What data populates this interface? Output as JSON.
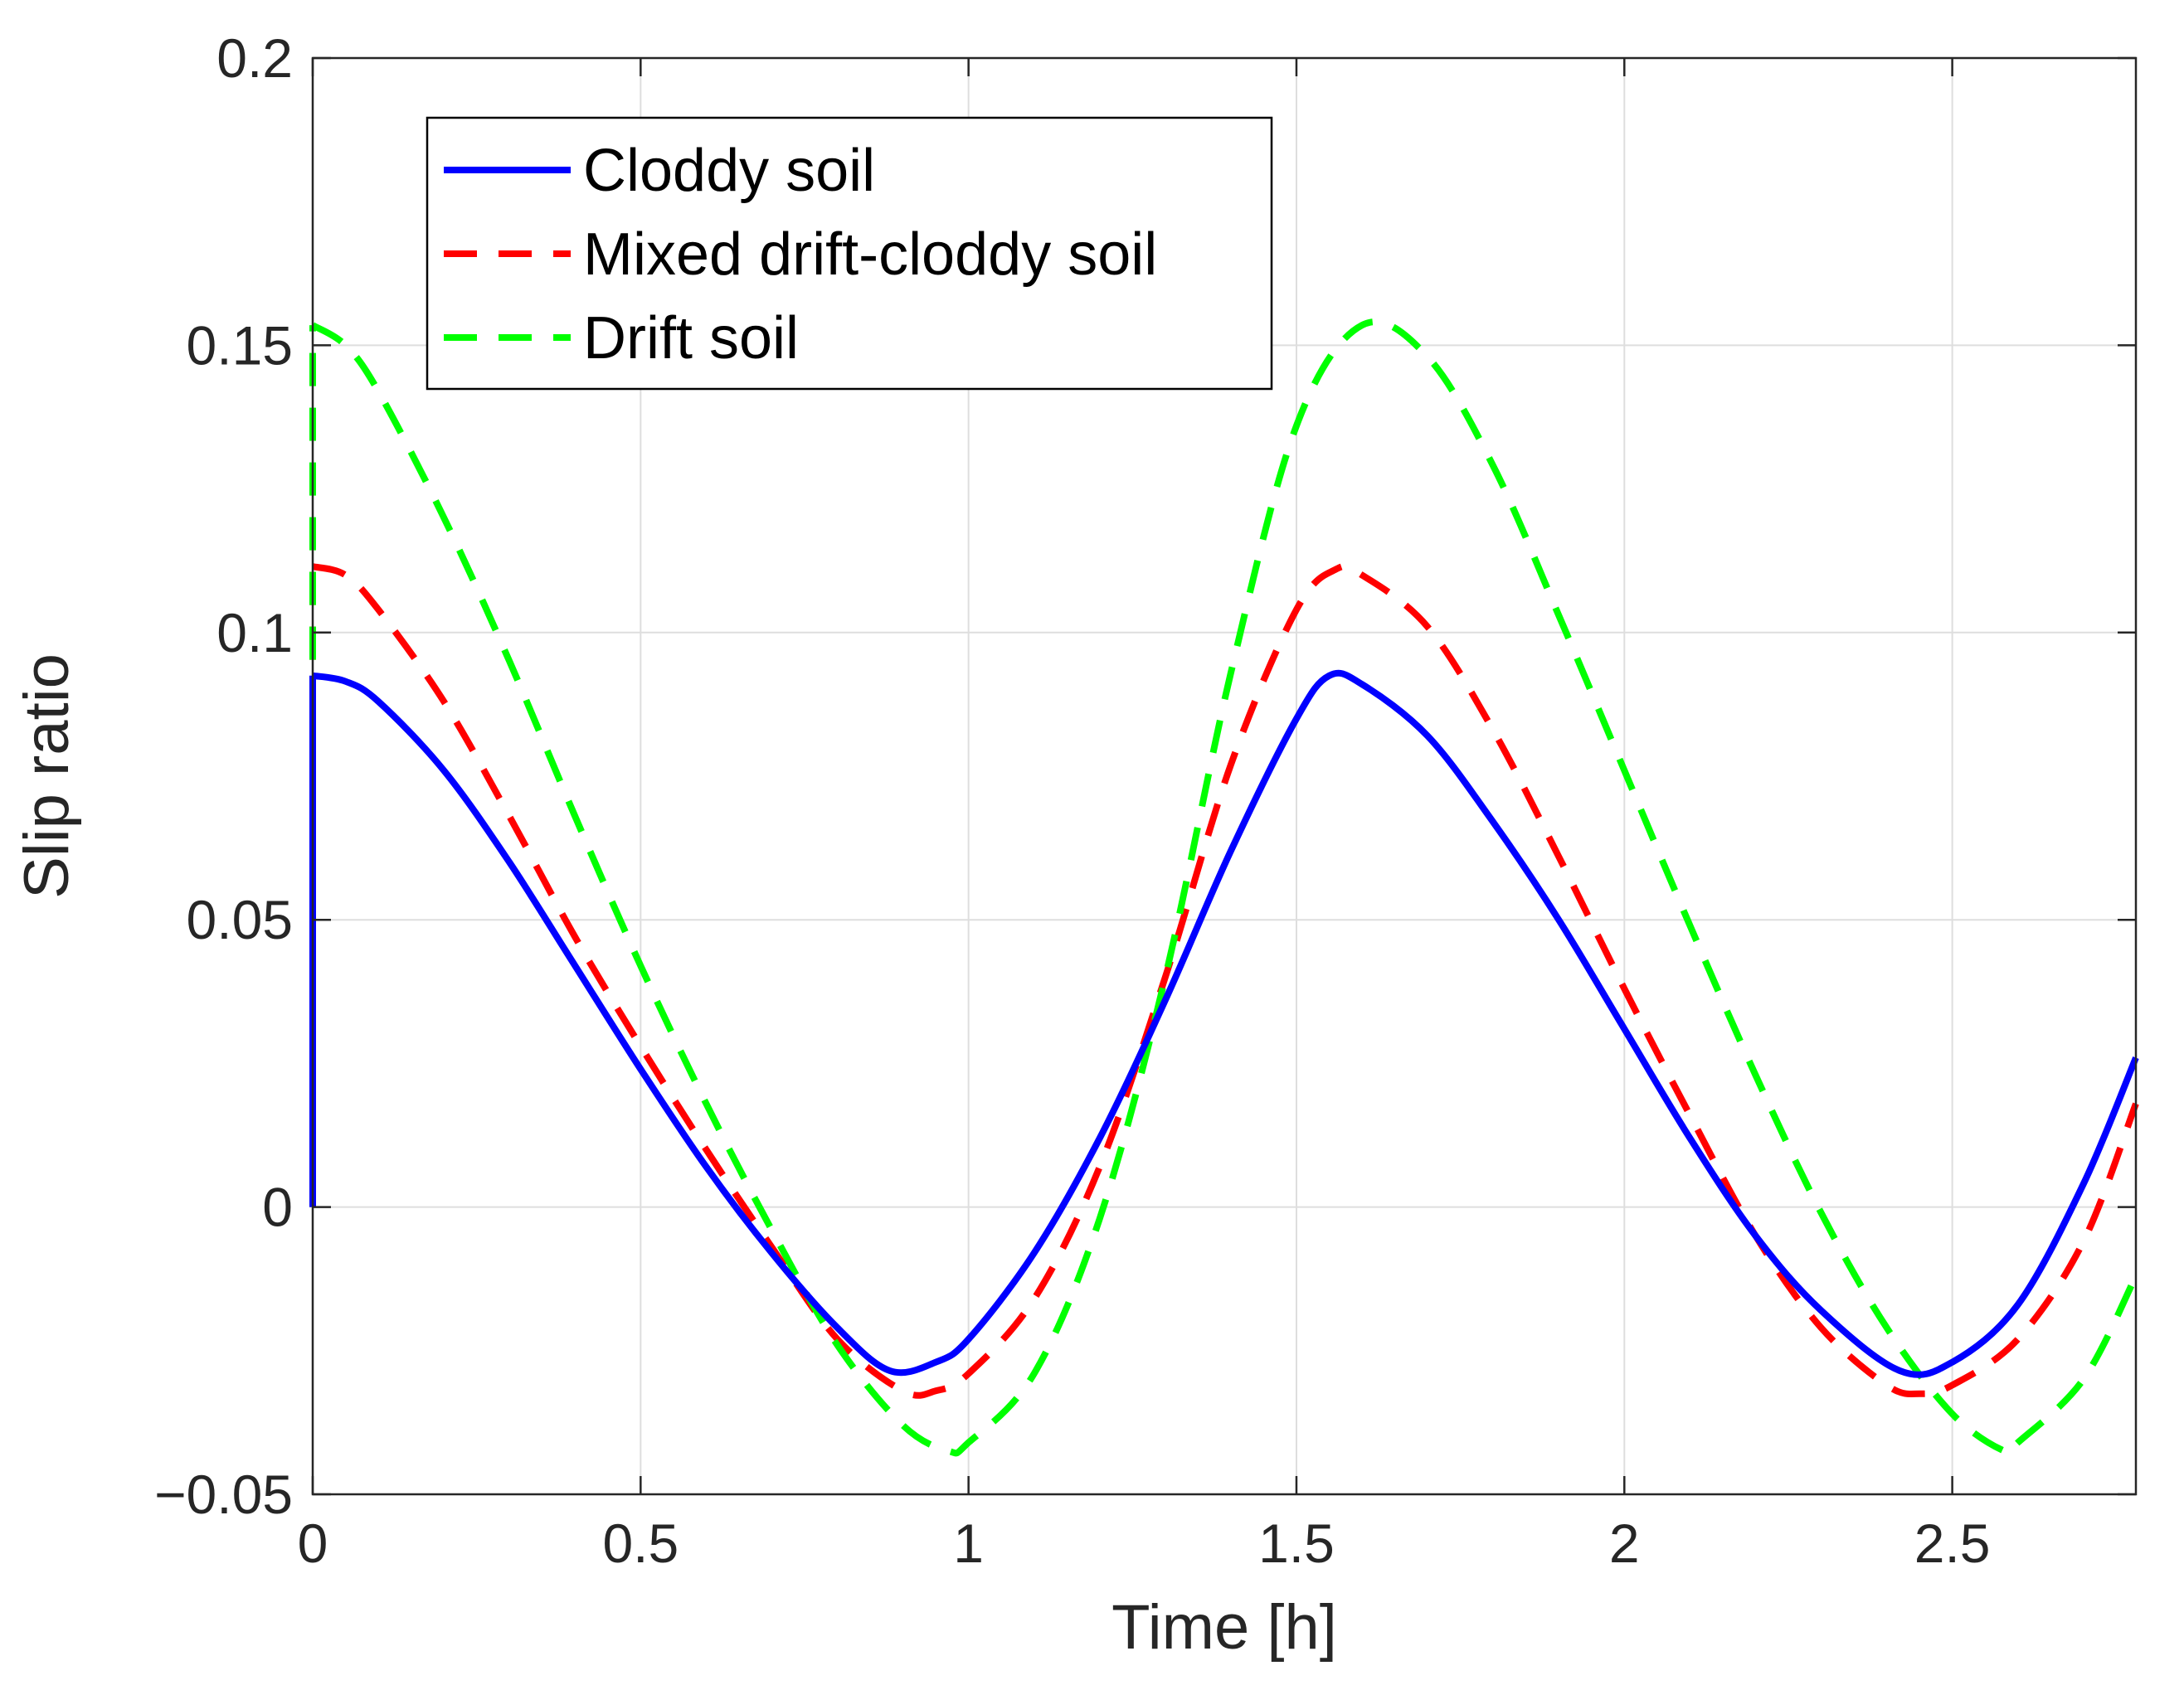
{
  "chart_data": {
    "type": "line",
    "title": "",
    "xlabel": "Time [h]",
    "ylabel": "Slip ratio",
    "xlim": [
      0,
      2.78
    ],
    "ylim": [
      -0.05,
      0.2
    ],
    "grid": true,
    "legend_position": "top-left",
    "xticks": [
      0,
      0.5,
      1,
      1.5,
      2,
      2.5
    ],
    "xtick_labels": [
      "0",
      "0.5",
      "1",
      "1.5",
      "2",
      "2.5"
    ],
    "yticks": [
      -0.05,
      0,
      0.05,
      0.1,
      0.15,
      0.2
    ],
    "ytick_labels": [
      "−0.05",
      "0",
      "0.05",
      "0.1",
      "0.15",
      "0.2"
    ],
    "series": [
      {
        "name": "Cloddy soil",
        "color": "#0000ff",
        "style": "solid",
        "x": [
          0,
          0.05,
          0.1,
          0.2,
          0.3,
          0.4,
          0.5,
          0.6,
          0.7,
          0.8,
          0.88,
          0.95,
          1.0,
          1.1,
          1.2,
          1.3,
          1.4,
          1.5,
          1.55,
          1.6,
          1.7,
          1.8,
          1.9,
          2.0,
          2.1,
          2.2,
          2.3,
          2.42,
          2.5,
          2.6,
          2.7,
          2.78
        ],
        "y": [
          0.0925,
          0.0915,
          0.088,
          0.076,
          0.06,
          0.042,
          0.024,
          0.007,
          -0.008,
          -0.021,
          -0.0285,
          -0.027,
          -0.023,
          -0.008,
          0.012,
          0.036,
          0.062,
          0.085,
          0.0925,
          0.091,
          0.082,
          0.067,
          0.05,
          0.031,
          0.012,
          -0.005,
          -0.018,
          -0.0285,
          -0.027,
          -0.017,
          0.004,
          0.026
        ]
      },
      {
        "name": "Mixed drift-cloddy soil",
        "color": "#ff0000",
        "style": "dashed",
        "x": [
          0,
          0.05,
          0.1,
          0.2,
          0.3,
          0.4,
          0.5,
          0.6,
          0.7,
          0.8,
          0.9,
          0.95,
          1.0,
          1.1,
          1.2,
          1.3,
          1.4,
          1.5,
          1.56,
          1.6,
          1.7,
          1.8,
          1.9,
          2.0,
          2.1,
          2.2,
          2.3,
          2.4,
          2.45,
          2.5,
          2.6,
          2.7,
          2.78
        ],
        "y": [
          0.1115,
          0.11,
          0.104,
          0.088,
          0.068,
          0.047,
          0.028,
          0.01,
          -0.007,
          -0.023,
          -0.032,
          -0.032,
          -0.029,
          -0.016,
          0.007,
          0.04,
          0.077,
          0.104,
          0.111,
          0.11,
          0.101,
          0.083,
          0.061,
          0.038,
          0.016,
          -0.005,
          -0.021,
          -0.031,
          -0.0325,
          -0.031,
          -0.023,
          -0.006,
          0.018
        ]
      },
      {
        "name": "Drift soil",
        "color": "#00ff00",
        "style": "dashed",
        "x": [
          0,
          0.05,
          0.1,
          0.2,
          0.3,
          0.4,
          0.5,
          0.6,
          0.7,
          0.8,
          0.9,
          0.97,
          1.0,
          1.1,
          1.2,
          1.3,
          1.4,
          1.5,
          1.6,
          1.7,
          1.8,
          1.9,
          2.0,
          2.1,
          2.2,
          2.3,
          2.4,
          2.5,
          2.58,
          2.6,
          2.7,
          2.78
        ],
        "y": [
          0.1535,
          0.15,
          0.142,
          0.12,
          0.095,
          0.068,
          0.042,
          0.018,
          -0.004,
          -0.024,
          -0.038,
          -0.0425,
          -0.041,
          -0.029,
          -0.002,
          0.04,
          0.093,
          0.136,
          0.1535,
          0.148,
          0.129,
          0.103,
          0.076,
          0.049,
          0.023,
          -0.001,
          -0.021,
          -0.036,
          -0.0425,
          -0.041,
          -0.03,
          -0.012
        ]
      }
    ]
  }
}
